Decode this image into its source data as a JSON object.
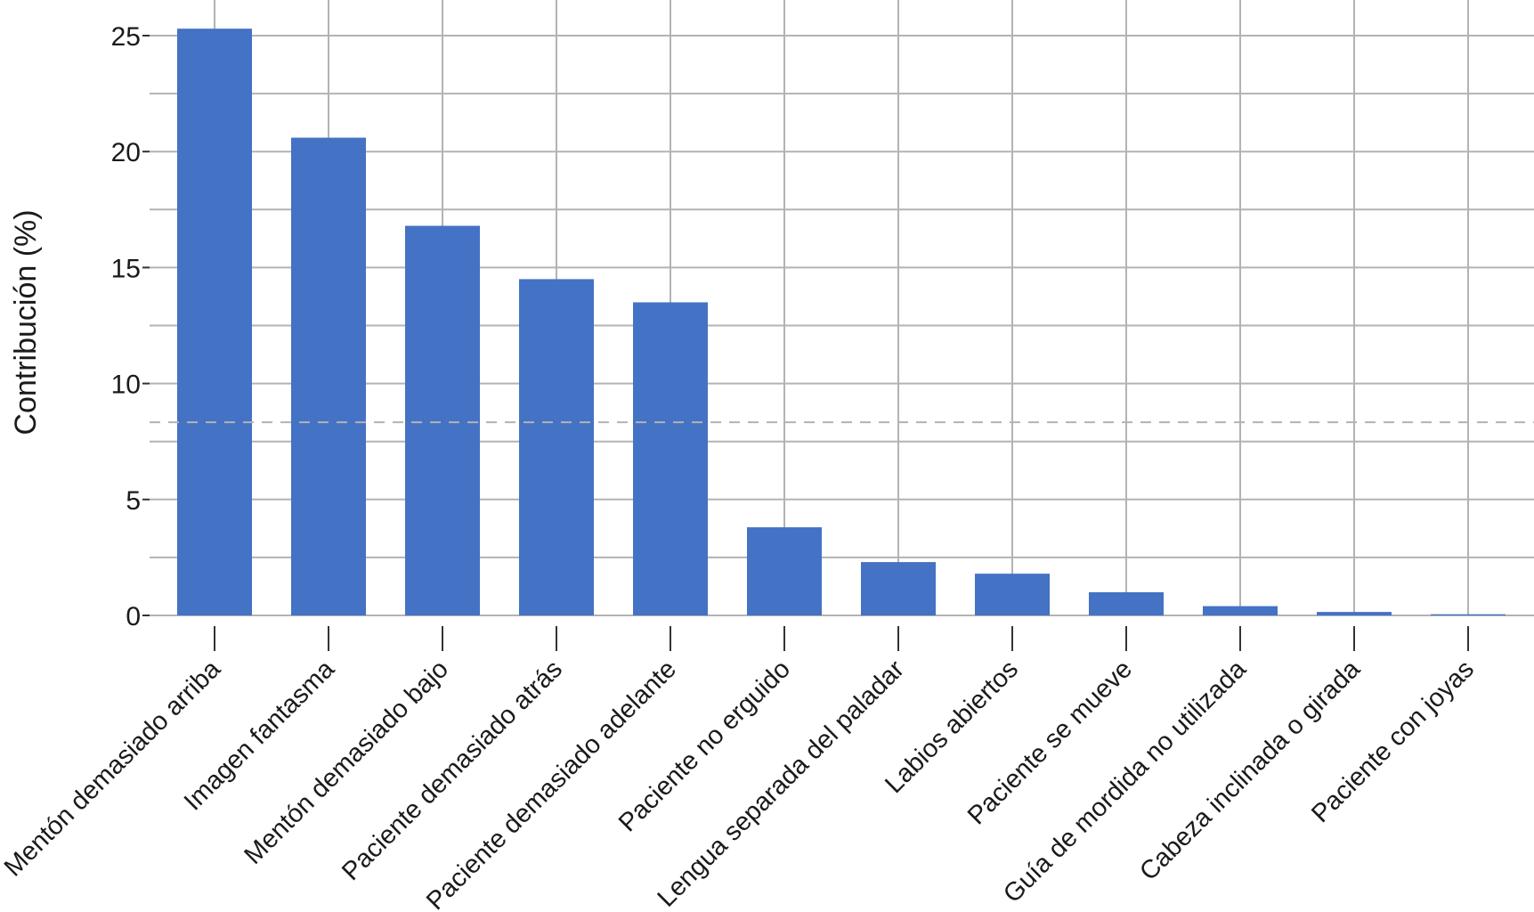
{
  "chart_data": {
    "type": "bar",
    "title": "",
    "xlabel": "",
    "ylabel": "Contribución (%)",
    "ylim": [
      0,
      26
    ],
    "yticks": [
      0,
      5,
      10,
      15,
      20,
      25
    ],
    "grid": true,
    "reference_line": {
      "value": 8.33,
      "style": "dashed"
    },
    "colors": {
      "bar": "#4472c4",
      "grid": "#b3b3b3",
      "reference": "#b3b3b3"
    },
    "categories": [
      "Mentón demasiado arriba",
      "Imagen fantasma",
      "Mentón demasiado bajo",
      "Paciente demasiado atrás",
      "Paciente demasiado adelante",
      "Paciente no erguido",
      "Lengua separada del paladar",
      "Labios abiertos",
      "Paciente se mueve",
      "Guía de mordida no utilizada",
      "Cabeza inclinada o girada",
      "Paciente con joyas"
    ],
    "values": [
      25.3,
      20.6,
      16.8,
      14.5,
      13.5,
      3.8,
      2.3,
      1.8,
      1.0,
      0.4,
      0.15,
      0.05
    ]
  }
}
